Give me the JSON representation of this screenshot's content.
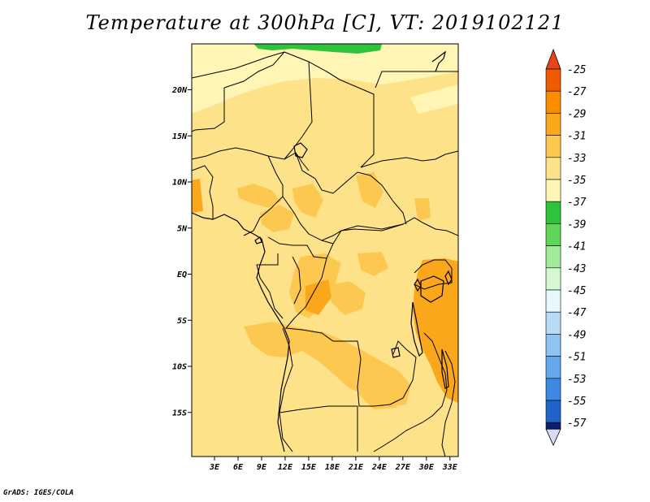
{
  "title": "Temperature at 300hPa [C], VT: 2019102121",
  "credit": "GrADS: IGES/COLA",
  "map": {
    "lat_labels": [
      {
        "lat": 20,
        "text": "20N"
      },
      {
        "lat": 15,
        "text": "15N"
      },
      {
        "lat": 10,
        "text": "10N"
      },
      {
        "lat": 5,
        "text": "5N"
      },
      {
        "lat": 0,
        "text": "EQ"
      },
      {
        "lat": -5,
        "text": "5S"
      },
      {
        "lat": -10,
        "text": "10S"
      },
      {
        "lat": -15,
        "text": "15S"
      }
    ],
    "lon_labels": [
      {
        "lon": 3,
        "text": "3E"
      },
      {
        "lon": 6,
        "text": "6E"
      },
      {
        "lon": 9,
        "text": "9E"
      },
      {
        "lon": 12,
        "text": "12E"
      },
      {
        "lon": 15,
        "text": "15E"
      },
      {
        "lon": 18,
        "text": "18E"
      },
      {
        "lon": 21,
        "text": "21E"
      },
      {
        "lon": 24,
        "text": "24E"
      },
      {
        "lon": 27,
        "text": "27E"
      },
      {
        "lon": 30,
        "text": "30E"
      },
      {
        "lon": 33,
        "text": "33E"
      }
    ]
  },
  "legend": {
    "levels": [
      "-25",
      "-27",
      "-29",
      "-31",
      "-33",
      "-35",
      "-37",
      "-39",
      "-41",
      "-43",
      "-45",
      "-47",
      "-49",
      "-51",
      "-53",
      "-55",
      "-57"
    ],
    "colors": [
      "#f05a00",
      "#fa8c00",
      "#fba71c",
      "#fdc850",
      "#fde28a",
      "#fff5b5",
      "#2ec43a",
      "#5ed65a",
      "#a1ec9b",
      "#d5f8d2",
      "#e8f8ff",
      "#b8dcf6",
      "#8ec3f2",
      "#64a7ec",
      "#3c88e2",
      "#1f64c8",
      "#0c3c98"
    ],
    "top_triangle_color": "#e8461a",
    "bottom_triangle_color": "#d9d9f5",
    "bottom_bar_color": "#0a1f6e"
  },
  "field_colors": {
    "base": "#fde28a",
    "warm": "#fdc850",
    "warmer": "#fba71c",
    "cool": "#fff5b5",
    "green": "#2ec43a"
  }
}
